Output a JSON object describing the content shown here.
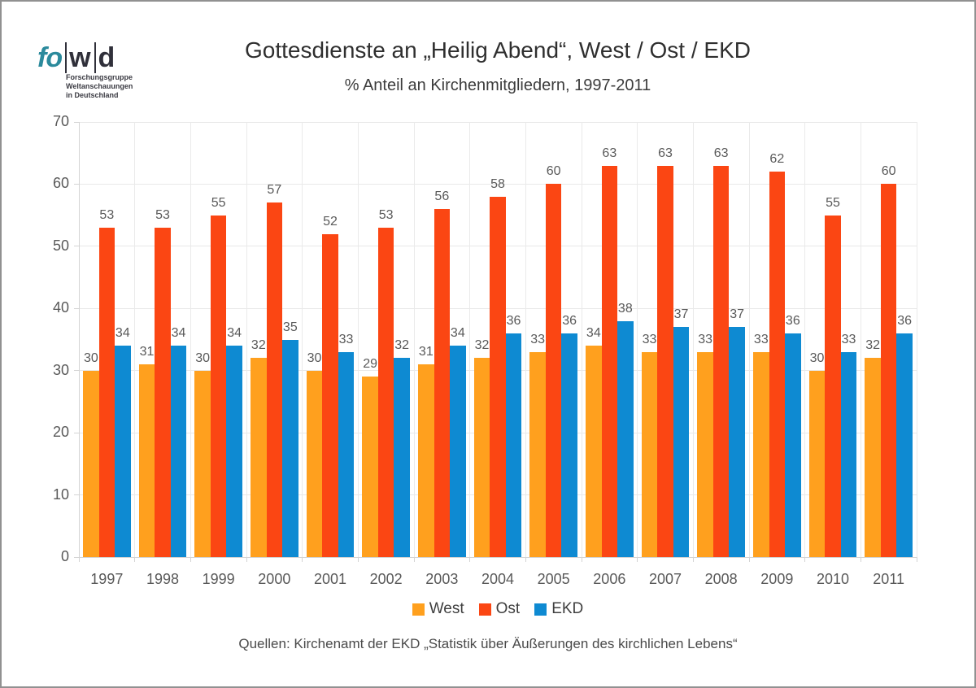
{
  "page": {
    "title": "Gottesdienste an „Heilig Abend“, West / Ost / EKD",
    "subtitle": "% Anteil an Kirchenmitgliedern, 1997-2011",
    "source": "Quellen: Kirchenamt der EKD „Statistik über Äußerungen des kirchlichen Lebens“"
  },
  "logo": {
    "part1": "fo",
    "part2": "w",
    "part3": "d",
    "tagline_lines": [
      "Forschungsgruppe",
      "Weltanschauungen",
      "in Deutschland"
    ],
    "teal_color": "#2B8A9C",
    "dark_color": "#30303A"
  },
  "chart_data": {
    "type": "bar",
    "categories": [
      "1997",
      "1998",
      "1999",
      "2000",
      "2001",
      "2002",
      "2003",
      "2004",
      "2005",
      "2006",
      "2007",
      "2008",
      "2009",
      "2010",
      "2011"
    ],
    "series": [
      {
        "name": "West",
        "color": "#FFA01E",
        "values": [
          30,
          31,
          30,
          32,
          30,
          29,
          31,
          32,
          33,
          34,
          33,
          33,
          33,
          30,
          32
        ]
      },
      {
        "name": "Ost",
        "color": "#FB4613",
        "values": [
          53,
          53,
          55,
          57,
          52,
          53,
          56,
          58,
          60,
          63,
          63,
          63,
          62,
          55,
          60
        ]
      },
      {
        "name": "EKD",
        "color": "#0E8AD2",
        "values": [
          34,
          34,
          34,
          35,
          33,
          32,
          34,
          36,
          36,
          38,
          37,
          37,
          36,
          33,
          36
        ]
      }
    ],
    "title": "Gottesdienste an „Heilig Abend“, West / Ost / EKD",
    "xlabel": "",
    "ylabel": "",
    "ylim": [
      0,
      70
    ],
    "ytick_step": 10,
    "grid": true,
    "legend_position": "bottom",
    "value_labels": true,
    "axis_text_color": "#595959",
    "gridline_color": "#E8E8E8"
  }
}
